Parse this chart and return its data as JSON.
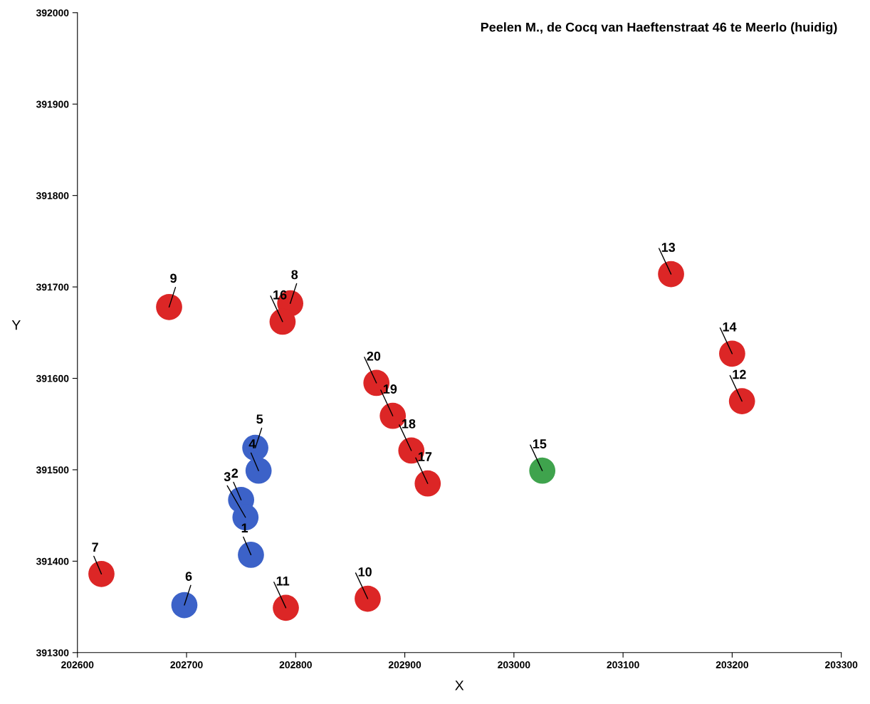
{
  "chart_data": {
    "type": "scatter",
    "title": "Peelen M., de Cocq van Haeftenstraat 46 te Meerlo (huidig)",
    "xlabel": "X",
    "ylabel": "Y",
    "series": [
      {
        "color": "#3c62c8",
        "x": [
          202759,
          202750,
          202754,
          202766,
          202763,
          202698
        ],
        "values": [
          391407,
          391467,
          391448,
          391499,
          391524,
          391352
        ]
      },
      {
        "color": "#dc2626",
        "x": [
          202622,
          202795,
          202684,
          202866,
          202791,
          203209,
          203144,
          203200,
          202788,
          202921,
          202906,
          202889,
          202874
        ],
        "values": [
          391386,
          391682,
          391678,
          391359,
          391349,
          391575,
          391714,
          391627,
          391662,
          391485,
          391521,
          391559,
          391595
        ]
      },
      {
        "color": "#3fa34d",
        "x": [
          203026
        ],
        "values": [
          391499
        ]
      }
    ],
    "annotations": [
      {
        "text": "1",
        "x": 202759,
        "y": 391407
      },
      {
        "text": "2",
        "x": 202750,
        "y": 391467
      },
      {
        "text": "3",
        "x": 202754,
        "y": 391448
      },
      {
        "text": "4",
        "x": 202766,
        "y": 391499
      },
      {
        "text": "5",
        "x": 202763,
        "y": 391524
      },
      {
        "text": "6",
        "x": 202698,
        "y": 391352
      },
      {
        "text": "7",
        "x": 202622,
        "y": 391386
      },
      {
        "text": "8",
        "x": 202795,
        "y": 391682
      },
      {
        "text": "9",
        "x": 202684,
        "y": 391678
      },
      {
        "text": "10",
        "x": 202866,
        "y": 391359
      },
      {
        "text": "11",
        "x": 202791,
        "y": 391349
      },
      {
        "text": "12",
        "x": 203209,
        "y": 391575
      },
      {
        "text": "13",
        "x": 203144,
        "y": 391714
      },
      {
        "text": "14",
        "x": 203200,
        "y": 391627
      },
      {
        "text": "15",
        "x": 203026,
        "y": 391499
      },
      {
        "text": "16",
        "x": 202788,
        "y": 391662
      },
      {
        "text": "17",
        "x": 202921,
        "y": 391485
      },
      {
        "text": "18",
        "x": 202906,
        "y": 391521
      },
      {
        "text": "19",
        "x": 202889,
        "y": 391559
      },
      {
        "text": "20",
        "x": 202874,
        "y": 391595
      }
    ],
    "xlim": [
      202600,
      203300
    ],
    "xticks": [
      202600,
      202700,
      202800,
      202900,
      203000,
      203100,
      203200,
      203300
    ],
    "ylim": [
      391300,
      392000
    ],
    "yticks": [
      391300,
      391400,
      391500,
      391600,
      391700,
      391800,
      391900,
      392000
    ],
    "grid": false,
    "legend": false,
    "marker": "circle"
  }
}
